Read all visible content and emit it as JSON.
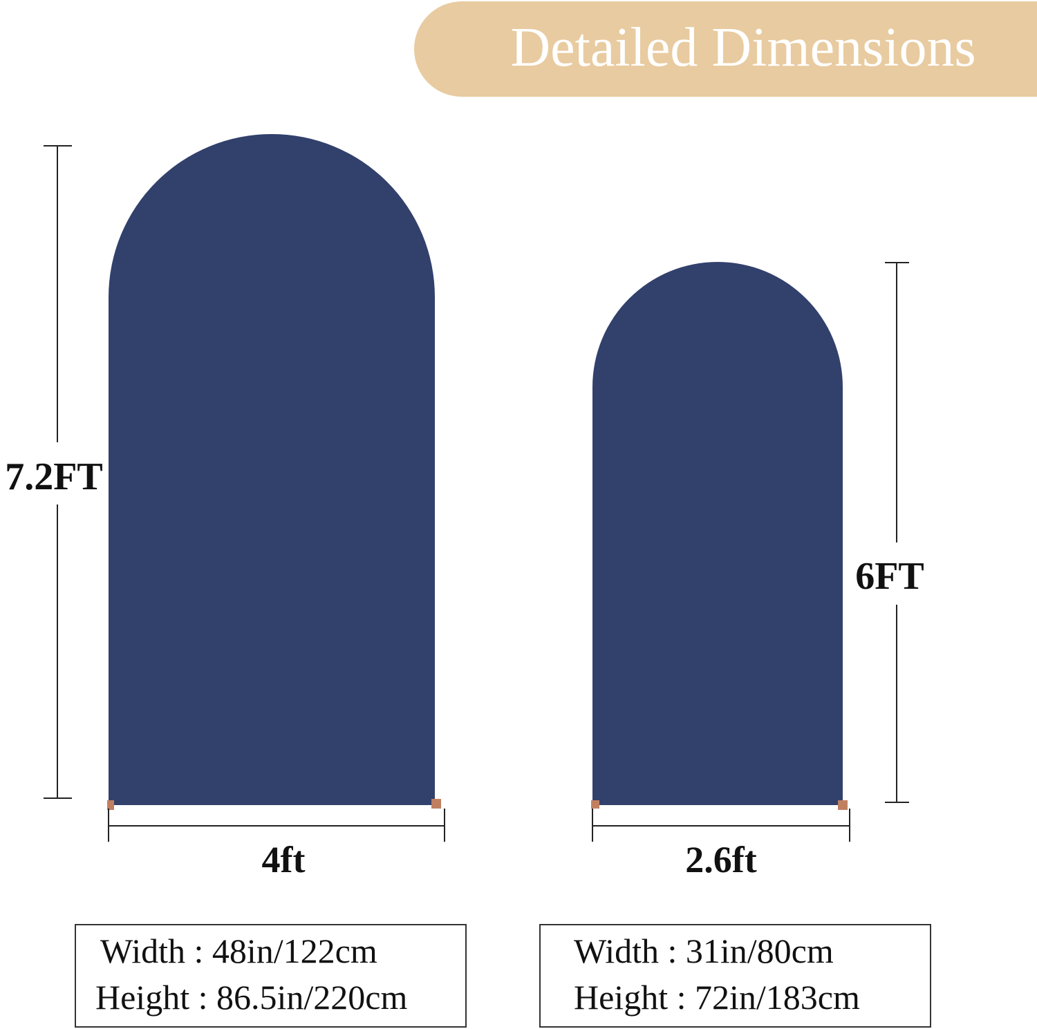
{
  "header": {
    "title": "Detailed Dimensions"
  },
  "arches": [
    {
      "height_label": "7.2FT",
      "width_label": "4ft",
      "specs": [
        "Width : 48in/122cm",
        "Height : 86.5in/220cm"
      ]
    },
    {
      "height_label": "6FT",
      "width_label": "2.6ft",
      "specs": [
        "Width : 31in/80cm",
        "Height : 72in/183cm"
      ]
    }
  ]
}
